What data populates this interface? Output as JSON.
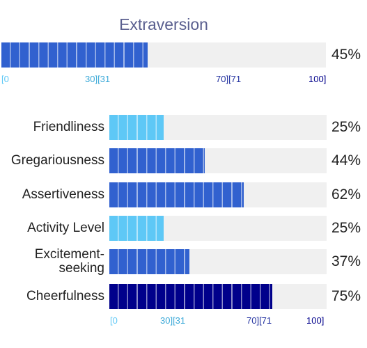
{
  "chart_data": {
    "type": "bar",
    "title": "Extraversion",
    "overall": {
      "value": 45,
      "label": "45%"
    },
    "categories": [
      "Friendliness",
      "Gregariousness",
      "Assertiveness",
      "Activity Level",
      "Excitement-seeking",
      "Cheerfulness"
    ],
    "values": [
      25,
      44,
      62,
      25,
      37,
      75
    ],
    "value_labels": [
      "25%",
      "44%",
      "62%",
      "25%",
      "37%",
      "75%"
    ],
    "xlim": [
      0,
      100
    ],
    "tick_labels": [
      "[0",
      "30][31",
      "70][71",
      "100]"
    ],
    "band_colors": {
      "low": "#5ec8f6",
      "mid": "#3161cf",
      "high": "#00008b"
    },
    "track_color": "#f0f0f0"
  }
}
